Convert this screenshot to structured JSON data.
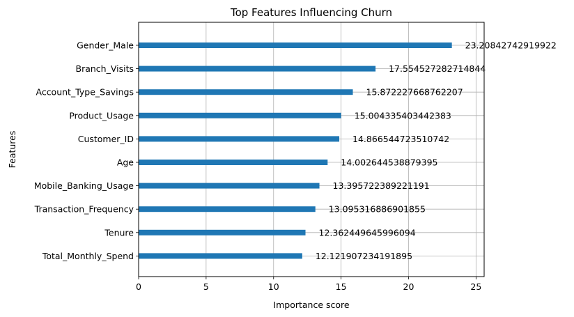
{
  "chart_data": {
    "type": "bar",
    "orientation": "horizontal",
    "title": "Top Features Influencing Churn",
    "xlabel": "Importance score",
    "ylabel": "Features",
    "xlim": [
      0,
      25.6
    ],
    "xticks": [
      0,
      5,
      10,
      15,
      20,
      25
    ],
    "grid": true,
    "bar_color": "#1f77b4",
    "categories": [
      "Gender_Male",
      "Branch_Visits",
      "Account_Type_Savings",
      "Product_Usage",
      "Customer_ID",
      "Age",
      "Mobile_Banking_Usage",
      "Transaction_Frequency",
      "Tenure",
      "Total_Monthly_Spend"
    ],
    "values": [
      23.20842742919922,
      17.554527282714844,
      15.872227668762207,
      15.004335403442383,
      14.866544723510742,
      14.002644538879395,
      13.395722389221191,
      13.095316886901855,
      12.362449645996094,
      12.121907234191895
    ],
    "value_labels": [
      "23.20842742919922",
      "17.554527282714844",
      "15.872227668762207",
      "15.004335403442383",
      "14.866544723510742",
      "14.002644538879395",
      "13.395722389221191",
      "13.095316886901855",
      "12.362449645996094",
      "12.121907234191895"
    ]
  }
}
